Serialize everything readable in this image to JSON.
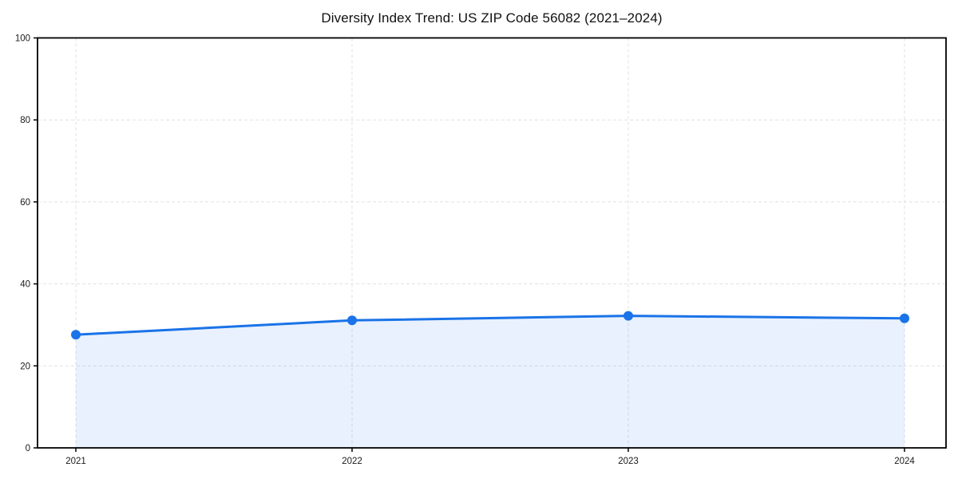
{
  "chart_data": {
    "type": "area",
    "title": "Diversity Index Trend: US ZIP Code 56082 (2021–2024)",
    "categories": [
      "2021",
      "2022",
      "2023",
      "2024"
    ],
    "series": [
      {
        "name": "Diversity Index",
        "values": [
          27.6,
          31.1,
          32.2,
          31.6
        ]
      }
    ],
    "xlabel": "",
    "ylabel": "",
    "ylim": [
      0,
      100
    ],
    "yticks": [
      0,
      20,
      40,
      60,
      80,
      100
    ],
    "grid": true,
    "grid_style": "dashed",
    "legend": false,
    "colors": {
      "line": "#1a73e8",
      "marker": "#1a73e8",
      "fill": "rgba(26,115,232,0.10)",
      "grid": "#e1e1e1",
      "spine": "#000000",
      "tick_text": "#1a1a1a",
      "background": "#ffffff"
    }
  }
}
